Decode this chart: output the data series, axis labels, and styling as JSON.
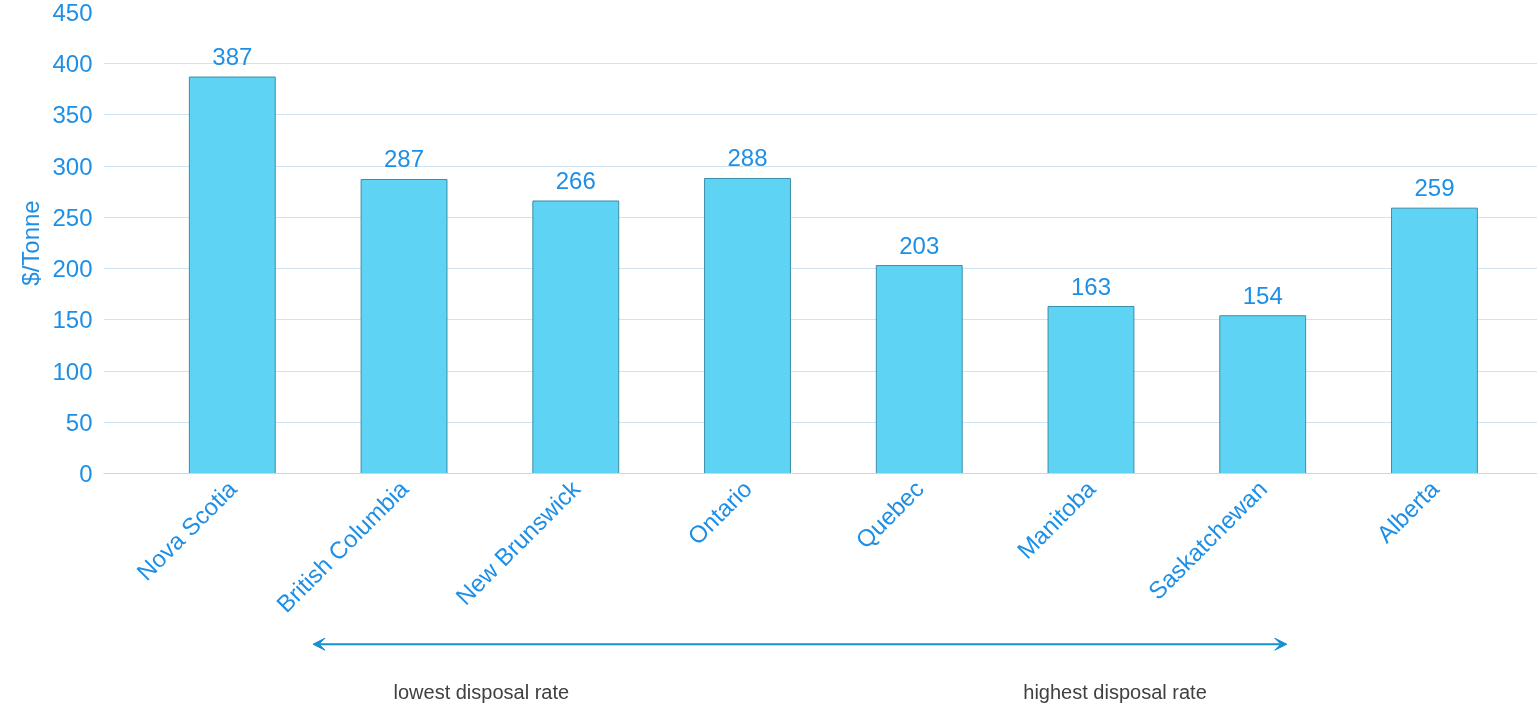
{
  "chart_data": {
    "type": "bar",
    "ylabel": "$/Tonne",
    "categories": [
      "Nova Scotia",
      "British Columbia",
      "New Brunswick",
      "Ontario",
      "Quebec",
      "Manitoba",
      "Saskatchewan",
      "Alberta"
    ],
    "values": [
      387,
      287,
      266,
      288,
      203,
      163,
      154,
      259
    ],
    "color": "#5fd3f3",
    "ylim": [
      0,
      450
    ],
    "yticks": [
      0,
      50,
      100,
      150,
      200,
      250,
      300,
      350,
      400,
      450
    ],
    "grid": "y",
    "data_labels": true,
    "annotations": [
      "lowest disposal rate",
      "highest disposal rate"
    ]
  }
}
